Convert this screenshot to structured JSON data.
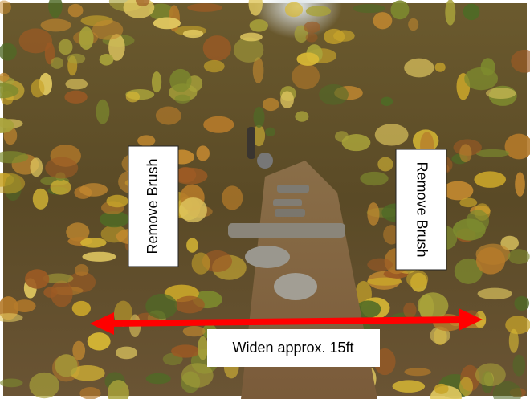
{
  "annotations": {
    "left_label": "Remove Brush",
    "right_label": "Remove Brush",
    "width_label": "Widen approx. 15ft"
  }
}
